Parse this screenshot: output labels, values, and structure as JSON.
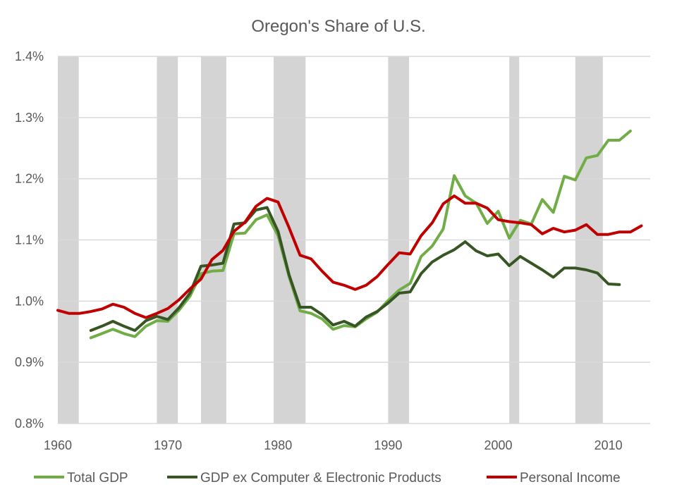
{
  "chart_data": {
    "type": "line",
    "title": "Oregon's Share of U.S.",
    "xlabel": "",
    "ylabel": "",
    "xlim": [
      1960,
      2013.8
    ],
    "ylim": [
      0.8,
      1.4
    ],
    "x_ticks": [
      "1960",
      "1970",
      "1980",
      "1990",
      "2000",
      "2010"
    ],
    "y_ticks": [
      "0.8%",
      "0.9%",
      "1.0%",
      "1.1%",
      "1.2%",
      "1.3%",
      "1.4%"
    ],
    "grid": "horizontal",
    "legend": "bottom",
    "shaded_periods": [
      [
        1960,
        1961.9
      ],
      [
        1969,
        1970.9
      ],
      [
        1973,
        1975.3
      ],
      [
        1979.6,
        1982.5
      ],
      [
        1990,
        1991.9
      ],
      [
        2001,
        2001.9
      ],
      [
        2007,
        2009.5
      ]
    ],
    "shade_color": "#d4d4d4",
    "series": [
      {
        "name": "Total GDP",
        "color": "#70AD47",
        "start_year": 1963,
        "values": [
          0.94,
          0.947,
          0.954,
          0.947,
          0.942,
          0.959,
          0.968,
          0.967,
          0.985,
          1.008,
          1.045,
          1.049,
          1.05,
          1.11,
          1.111,
          1.133,
          1.141,
          1.107,
          1.04,
          0.984,
          0.98,
          0.971,
          0.954,
          0.96,
          0.958,
          0.971,
          0.982,
          1.001,
          1.018,
          1.029,
          1.073,
          1.09,
          1.118,
          1.205,
          1.172,
          1.16,
          1.127,
          1.147,
          1.103,
          1.132,
          1.126,
          1.166,
          1.145,
          1.204,
          1.198,
          1.234,
          1.238,
          1.263,
          1.263,
          1.278
        ]
      },
      {
        "name": "GDP ex Computer & Electronic Products",
        "color": "#375623",
        "start_year": 1963,
        "values": [
          0.952,
          0.959,
          0.967,
          0.959,
          0.952,
          0.968,
          0.975,
          0.97,
          0.989,
          1.013,
          1.057,
          1.059,
          1.062,
          1.126,
          1.128,
          1.149,
          1.153,
          1.114,
          1.043,
          0.99,
          0.99,
          0.978,
          0.961,
          0.967,
          0.959,
          0.974,
          0.983,
          0.997,
          1.013,
          1.015,
          1.045,
          1.064,
          1.075,
          1.084,
          1.097,
          1.082,
          1.074,
          1.077,
          1.058,
          1.073,
          1.062,
          1.051,
          1.039,
          1.054,
          1.054,
          1.051,
          1.046,
          1.028,
          1.027
        ]
      },
      {
        "name": "Personal Income",
        "color": "#C00000",
        "start_year": 1960,
        "values": [
          0.985,
          0.98,
          0.98,
          0.983,
          0.987,
          0.995,
          0.99,
          0.98,
          0.973,
          0.98,
          0.988,
          1.002,
          1.02,
          1.036,
          1.068,
          1.083,
          1.114,
          1.129,
          1.155,
          1.168,
          1.162,
          1.12,
          1.075,
          1.069,
          1.049,
          1.031,
          1.026,
          1.019,
          1.026,
          1.04,
          1.06,
          1.079,
          1.077,
          1.107,
          1.128,
          1.159,
          1.172,
          1.16,
          1.16,
          1.152,
          1.133,
          1.13,
          1.128,
          1.125,
          1.11,
          1.119,
          1.113,
          1.116,
          1.125,
          1.109,
          1.109,
          1.113,
          1.113,
          1.123
        ]
      }
    ]
  }
}
